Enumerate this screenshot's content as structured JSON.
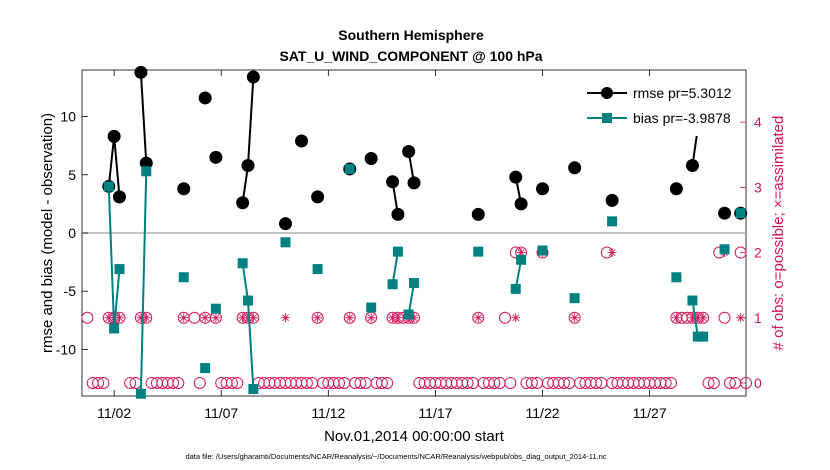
{
  "chart_data": {
    "type": "line",
    "title": "Southern Hemisphere",
    "subtitle": "SAT_U_WIND_COMPONENT @ 100 hPa",
    "xlabel": "Nov.01,2014 00:00:00 start",
    "ylabel_left": "rmse and bias (model - observation)",
    "ylabel_right": "# of obs: o=possible; ×=assimilated",
    "footnote": "data file: /Users/gharamti/Documents/NCAR/Reanalysis/~/Documents/NCAR/Reanalysis/webpub/obs_diag_output_2014-11.nc",
    "xlim": [
      0.5,
      31.5
    ],
    "ylim_left": [
      -14,
      14
    ],
    "ylim_right": [
      -0.2,
      4.8
    ],
    "x_ticks": [
      2,
      7,
      12,
      17,
      22,
      27
    ],
    "x_tick_labels": [
      "11/02",
      "11/07",
      "11/12",
      "11/17",
      "11/22",
      "11/27"
    ],
    "y_ticks_left": [
      -10,
      -5,
      0,
      5,
      10
    ],
    "y_tick_labels_left": [
      "-10",
      "-5",
      "0",
      "5",
      "10"
    ],
    "y_ticks_right": [
      0,
      1,
      2,
      3,
      4
    ],
    "y_tick_labels_right": [
      "0",
      "1",
      "2",
      "3",
      "4"
    ],
    "zero_line": 0,
    "colors": {
      "rmse": "#000000",
      "bias": "#008080",
      "obs": "#d4145a",
      "zero": "#b0b0b0"
    },
    "legend": [
      {
        "name": "rmse",
        "label": "rmse pr=5.3012"
      },
      {
        "name": "bias",
        "label": "bias pr=-3.9878"
      }
    ],
    "series": [
      {
        "name": "rmse",
        "points": [
          [
            1.75,
            4.0
          ],
          [
            2.0,
            8.3
          ],
          [
            2.25,
            3.1
          ],
          [
            null,
            null
          ],
          [
            3.25,
            13.8
          ],
          [
            3.5,
            6.0
          ],
          [
            null,
            null
          ],
          [
            5.25,
            3.8
          ],
          [
            null,
            null
          ],
          [
            6.25,
            11.6
          ],
          [
            null,
            null
          ],
          [
            6.75,
            6.5
          ],
          [
            null,
            null
          ],
          [
            8.0,
            2.6
          ],
          [
            8.25,
            5.8
          ],
          [
            8.5,
            13.4
          ],
          [
            null,
            null
          ],
          [
            10.0,
            0.8
          ],
          [
            null,
            null
          ],
          [
            10.75,
            7.9
          ],
          [
            null,
            null
          ],
          [
            11.5,
            3.1
          ],
          [
            null,
            null
          ],
          [
            13.0,
            5.5
          ],
          [
            null,
            null
          ],
          [
            14.0,
            6.4
          ],
          [
            null,
            null
          ],
          [
            15.0,
            4.4
          ],
          [
            15.25,
            1.6
          ],
          [
            null,
            null
          ],
          [
            15.75,
            7.0
          ],
          [
            16.0,
            4.3
          ],
          [
            null,
            null
          ],
          [
            19.0,
            1.6
          ],
          [
            null,
            null
          ],
          [
            20.75,
            4.8
          ],
          [
            21.0,
            2.5
          ],
          [
            null,
            null
          ],
          [
            22.0,
            3.8
          ],
          [
            null,
            null
          ],
          [
            23.5,
            5.6
          ],
          [
            null,
            null
          ],
          [
            25.25,
            2.8
          ],
          [
            null,
            null
          ],
          [
            28.25,
            3.8
          ],
          [
            null,
            null
          ],
          [
            29.0,
            5.8
          ],
          [
            29.25,
            9.0
          ],
          [
            29.5,
            8.9
          ],
          [
            null,
            null
          ],
          [
            30.5,
            1.7
          ],
          [
            null,
            null
          ],
          [
            31.25,
            1.7
          ]
        ]
      },
      {
        "name": "bias",
        "points": [
          [
            1.75,
            4.0
          ],
          [
            2.0,
            -8.2
          ],
          [
            2.25,
            -3.1
          ],
          [
            null,
            null
          ],
          [
            3.25,
            -13.8
          ],
          [
            3.5,
            5.3
          ],
          [
            null,
            null
          ],
          [
            5.25,
            -3.8
          ],
          [
            null,
            null
          ],
          [
            6.25,
            -11.6
          ],
          [
            null,
            null
          ],
          [
            6.75,
            -6.5
          ],
          [
            null,
            null
          ],
          [
            8.0,
            -2.6
          ],
          [
            8.25,
            -5.8
          ],
          [
            8.5,
            -13.4
          ],
          [
            null,
            null
          ],
          [
            10.0,
            -0.8
          ],
          [
            null,
            null
          ],
          [
            11.5,
            -3.1
          ],
          [
            null,
            null
          ],
          [
            13.0,
            5.5
          ],
          [
            null,
            null
          ],
          [
            14.0,
            -6.4
          ],
          [
            null,
            null
          ],
          [
            15.0,
            -4.4
          ],
          [
            15.25,
            -1.6
          ],
          [
            null,
            null
          ],
          [
            15.75,
            -7.0
          ],
          [
            16.0,
            -4.3
          ],
          [
            null,
            null
          ],
          [
            19.0,
            -1.6
          ],
          [
            null,
            null
          ],
          [
            20.75,
            -4.8
          ],
          [
            21.0,
            -2.3
          ],
          [
            null,
            null
          ],
          [
            22.0,
            -1.5
          ],
          [
            null,
            null
          ],
          [
            23.5,
            -5.6
          ],
          [
            null,
            null
          ],
          [
            25.25,
            1.0
          ],
          [
            null,
            null
          ],
          [
            28.25,
            -3.8
          ],
          [
            null,
            null
          ],
          [
            29.0,
            -5.8
          ],
          [
            29.25,
            -8.9
          ],
          [
            29.5,
            -8.9
          ],
          [
            null,
            null
          ],
          [
            30.5,
            -1.4
          ],
          [
            null,
            null
          ],
          [
            31.25,
            1.7
          ]
        ]
      }
    ],
    "obs_possible": {
      "x": [
        0.75,
        1.0,
        1.25,
        1.5,
        1.75,
        2.0,
        2.25,
        2.75,
        3.0,
        3.25,
        3.5,
        3.75,
        4.0,
        4.25,
        4.5,
        4.75,
        5.0,
        5.25,
        5.75,
        6.0,
        6.25,
        6.75,
        7.0,
        7.25,
        7.5,
        7.75,
        8.0,
        8.25,
        8.5,
        8.75,
        9.0,
        9.25,
        9.5,
        9.75,
        10.0,
        10.25,
        10.5,
        10.75,
        11.0,
        11.25,
        11.5,
        11.75,
        12.0,
        12.25,
        12.5,
        12.75,
        13.0,
        13.25,
        13.5,
        13.75,
        14.0,
        14.25,
        14.5,
        14.75,
        15.0,
        15.25,
        15.5,
        15.75,
        16.0,
        16.25,
        16.5,
        16.75,
        17.0,
        17.25,
        17.5,
        17.75,
        18.0,
        18.25,
        18.5,
        18.75,
        19.0,
        19.25,
        19.5,
        19.75,
        20.0,
        20.25,
        20.5,
        20.75,
        21.0,
        21.25,
        21.5,
        21.75,
        22.0,
        22.25,
        22.5,
        22.75,
        23.0,
        23.25,
        23.5,
        23.75,
        24.0,
        24.25,
        24.5,
        24.75,
        25.0,
        25.25,
        25.5,
        25.75,
        26.0,
        26.25,
        26.5,
        26.75,
        27.0,
        27.25,
        27.5,
        27.75,
        28.0,
        28.25,
        28.5,
        28.75,
        29.0,
        29.25,
        29.5,
        29.75,
        30.0,
        30.25,
        30.5,
        30.75,
        31.0,
        31.25,
        31.5
      ],
      "y": [
        1,
        0,
        0,
        0,
        1,
        1,
        1,
        0,
        0,
        1,
        1,
        0,
        0,
        0,
        0,
        0,
        0,
        1,
        1,
        0,
        1,
        1,
        0,
        0,
        0,
        0,
        1,
        1,
        1,
        0,
        0,
        0,
        0,
        0,
        0,
        0,
        0,
        0,
        0,
        0,
        1,
        0,
        0,
        0,
        0,
        0,
        1,
        0,
        0,
        0,
        1,
        0,
        0,
        0,
        1,
        1,
        1,
        1,
        1,
        0,
        0,
        0,
        0,
        0,
        0,
        0,
        0,
        0,
        0,
        0,
        1,
        0,
        0,
        0,
        0,
        1,
        0,
        2,
        2,
        0,
        0,
        0,
        2,
        0,
        0,
        0,
        0,
        0,
        1,
        0,
        0,
        0,
        0,
        0,
        2,
        0,
        0,
        0,
        0,
        0,
        0,
        0,
        0,
        0,
        0,
        0,
        0,
        1,
        1,
        1,
        1,
        1,
        1,
        0,
        0,
        2,
        1,
        0,
        0,
        2,
        0
      ]
    },
    "obs_assimilated": {
      "x": [
        1.75,
        2.0,
        2.25,
        3.25,
        3.5,
        5.25,
        6.25,
        6.75,
        8.0,
        8.25,
        8.5,
        10.0,
        11.5,
        13.0,
        14.0,
        15.0,
        15.25,
        15.75,
        16.0,
        19.0,
        20.75,
        21.0,
        22.0,
        23.5,
        25.25,
        28.25,
        29.0,
        29.25,
        29.5,
        30.5,
        31.25
      ],
      "y": [
        1,
        1,
        1,
        1,
        1,
        1,
        1,
        1,
        1,
        1,
        1,
        1,
        1,
        1,
        1,
        1,
        1,
        1,
        1,
        1,
        1,
        2,
        2,
        1,
        2,
        1,
        1,
        1,
        1,
        2,
        1
      ]
    }
  }
}
